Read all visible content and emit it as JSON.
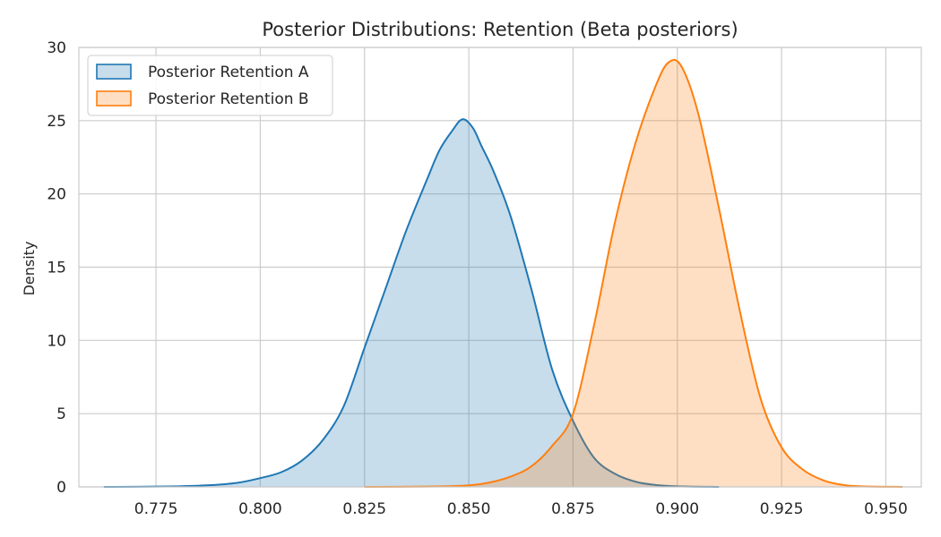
{
  "chart_data": {
    "type": "area",
    "title": "Posterior Distributions: Retention (Beta posteriors)",
    "xlabel": "",
    "ylabel": "Density",
    "xlim": [
      0.7565,
      0.9585
    ],
    "ylim": [
      0,
      30
    ],
    "x_ticks": [
      "0.775",
      "0.800",
      "0.825",
      "0.850",
      "0.875",
      "0.900",
      "0.925",
      "0.950"
    ],
    "y_ticks": [
      "0",
      "5",
      "10",
      "15",
      "20",
      "25",
      "30"
    ],
    "grid": true,
    "legend_position": "top-left",
    "series": [
      {
        "name": "Posterior Retention A",
        "color": "#1f77b4",
        "points": [
          [
            0.7625,
            0.0
          ],
          [
            0.775,
            0.02
          ],
          [
            0.785,
            0.08
          ],
          [
            0.79,
            0.15
          ],
          [
            0.795,
            0.3
          ],
          [
            0.8,
            0.6
          ],
          [
            0.805,
            1.0
          ],
          [
            0.81,
            1.8
          ],
          [
            0.815,
            3.2
          ],
          [
            0.82,
            5.5
          ],
          [
            0.825,
            9.5
          ],
          [
            0.83,
            13.5
          ],
          [
            0.835,
            17.5
          ],
          [
            0.84,
            21.0
          ],
          [
            0.843,
            23.0
          ],
          [
            0.846,
            24.3
          ],
          [
            0.8485,
            25.1
          ],
          [
            0.851,
            24.5
          ],
          [
            0.853,
            23.3
          ],
          [
            0.856,
            21.5
          ],
          [
            0.86,
            18.5
          ],
          [
            0.865,
            13.5
          ],
          [
            0.87,
            8.0
          ],
          [
            0.875,
            4.5
          ],
          [
            0.88,
            2.0
          ],
          [
            0.885,
            0.9
          ],
          [
            0.89,
            0.35
          ],
          [
            0.895,
            0.12
          ],
          [
            0.9,
            0.04
          ],
          [
            0.91,
            0.0
          ]
        ]
      },
      {
        "name": "Posterior Retention B",
        "color": "#ff7f0e",
        "points": [
          [
            0.825,
            0.0
          ],
          [
            0.84,
            0.02
          ],
          [
            0.85,
            0.1
          ],
          [
            0.855,
            0.3
          ],
          [
            0.86,
            0.7
          ],
          [
            0.865,
            1.4
          ],
          [
            0.87,
            2.8
          ],
          [
            0.875,
            5.0
          ],
          [
            0.88,
            11.0
          ],
          [
            0.885,
            18.0
          ],
          [
            0.89,
            23.5
          ],
          [
            0.895,
            27.5
          ],
          [
            0.898,
            29.0
          ],
          [
            0.901,
            28.7
          ],
          [
            0.905,
            25.5
          ],
          [
            0.91,
            19.0
          ],
          [
            0.915,
            12.0
          ],
          [
            0.92,
            6.0
          ],
          [
            0.925,
            2.7
          ],
          [
            0.93,
            1.2
          ],
          [
            0.935,
            0.45
          ],
          [
            0.94,
            0.12
          ],
          [
            0.945,
            0.03
          ],
          [
            0.954,
            0.0
          ]
        ]
      }
    ]
  }
}
